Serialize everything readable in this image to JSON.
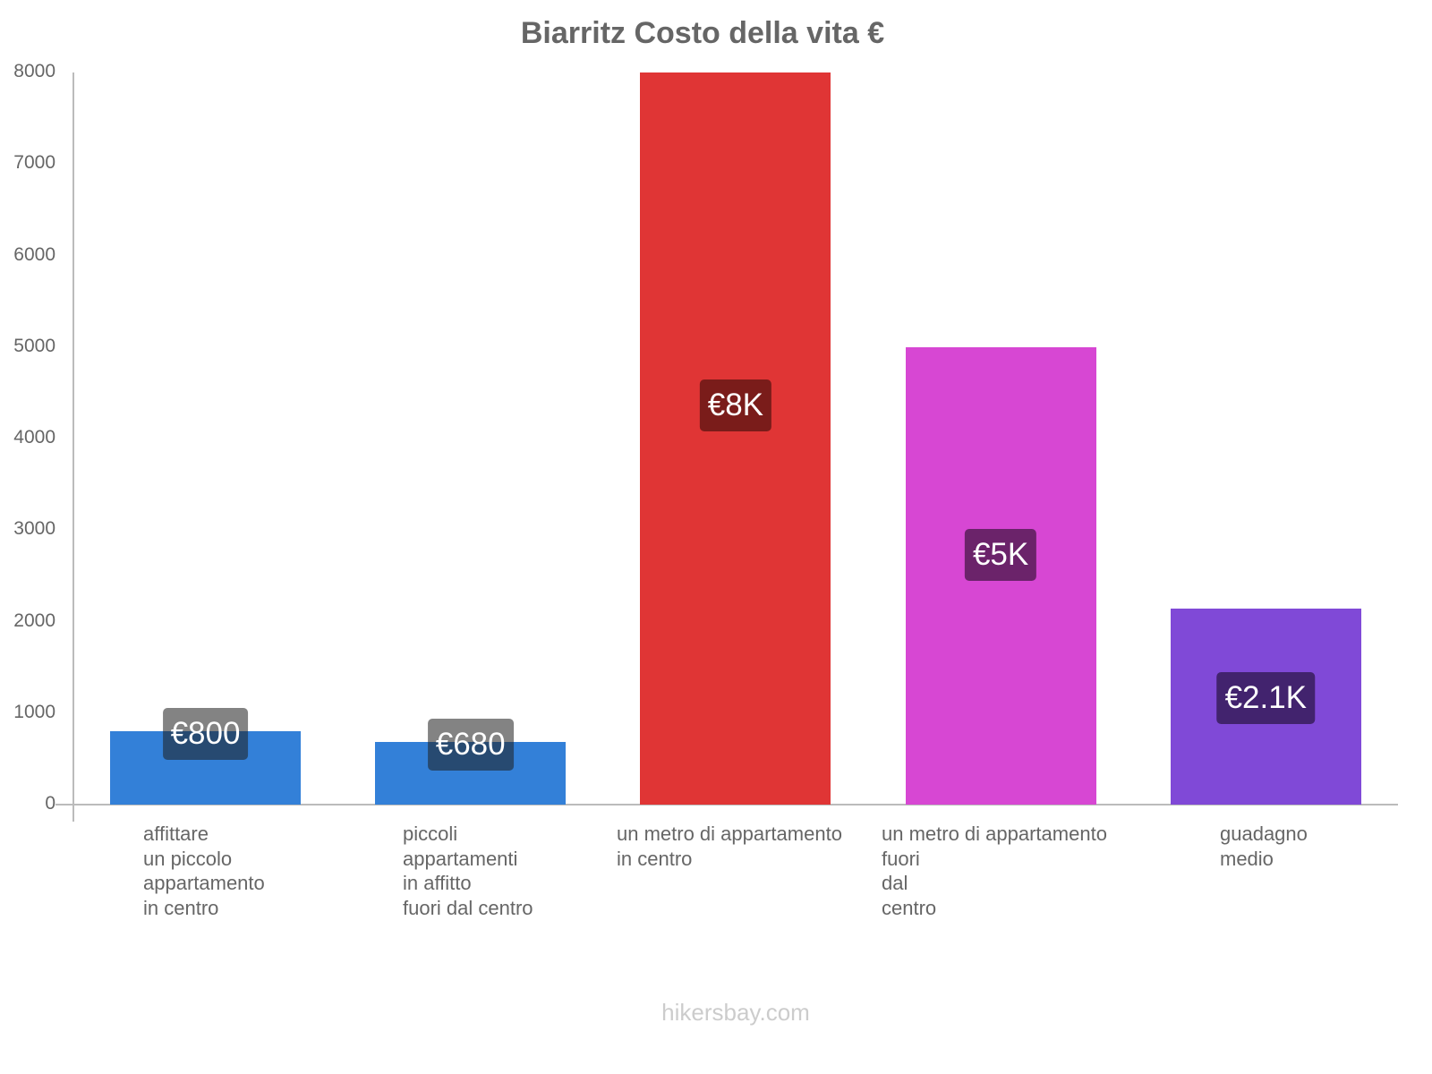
{
  "title": "Biarritz Costo della vita €",
  "footer": "hikersbay.com",
  "y_ticks": [
    "8000",
    "7000",
    "6000",
    "5000",
    "4000",
    "3000",
    "2000",
    "1000",
    "0"
  ],
  "bars": [
    {
      "label": "affittare\nun piccolo\nappartamento\nin centro",
      "value_label": "€800",
      "color": "#3380d8",
      "label_bg": "rgba(30,30,30,0.55)"
    },
    {
      "label": "piccoli\nappartamenti\nin affitto\nfuori dal centro",
      "value_label": "€680",
      "color": "#3380d8",
      "label_bg": "rgba(30,30,30,0.55)"
    },
    {
      "label": "un metro di appartamento\nin centro",
      "value_label": "€8K",
      "color": "#e03535",
      "label_bg": "#7a1c1a"
    },
    {
      "label": "un metro di appartamento\nfuori\ndal\ncentro",
      "value_label": "€5K",
      "color": "#d747d3",
      "label_bg": "#6b236a"
    },
    {
      "label": "guadagno\nmedio",
      "value_label": "€2.1K",
      "color": "#8049d7",
      "label_bg": "#42236e"
    }
  ],
  "chart_data": {
    "type": "bar",
    "title": "Biarritz Costo della vita €",
    "categories": [
      "affittare un piccolo appartamento in centro",
      "piccoli appartamenti in affitto fuori dal centro",
      "un metro di appartamento in centro",
      "un metro di appartamento fuori dal centro",
      "guadagno medio"
    ],
    "values": [
      800,
      680,
      8000,
      5000,
      2140
    ],
    "value_labels": [
      "€800",
      "€680",
      "€8K",
      "€5K",
      "€2.1K"
    ],
    "colors": [
      "#3380d8",
      "#3380d8",
      "#e03535",
      "#d747d3",
      "#8049d7"
    ],
    "xlabel": "",
    "ylabel": "",
    "ylim": [
      0,
      8000
    ],
    "yticks": [
      0,
      1000,
      2000,
      3000,
      4000,
      5000,
      6000,
      7000,
      8000
    ],
    "grid": false,
    "legend": "none",
    "source": "hikersbay.com"
  }
}
